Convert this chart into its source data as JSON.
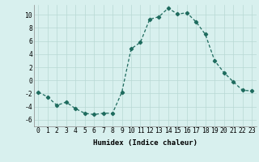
{
  "x": [
    0,
    1,
    2,
    3,
    4,
    5,
    6,
    7,
    8,
    9,
    10,
    11,
    12,
    13,
    14,
    15,
    16,
    17,
    18,
    19,
    20,
    21,
    22,
    23
  ],
  "y": [
    -1.8,
    -2.5,
    -3.8,
    -3.3,
    -4.3,
    -5.0,
    -5.2,
    -5.0,
    -5.0,
    -1.8,
    4.8,
    5.8,
    9.3,
    9.7,
    11.0,
    10.1,
    10.3,
    8.9,
    7.0,
    3.0,
    1.2,
    -0.2,
    -1.5,
    -1.6
  ],
  "line_color": "#1e6b5e",
  "marker": "D",
  "marker_size": 2.2,
  "linewidth": 0.9,
  "bg_color": "#d8f0ee",
  "grid_color": "#b8d8d4",
  "xlabel": "Humidex (Indice chaleur)",
  "xlabel_fontsize": 6.5,
  "tick_fontsize": 5.8,
  "xlim": [
    -0.5,
    23.5
  ],
  "ylim": [
    -7,
    11.5
  ],
  "yticks": [
    -6,
    -4,
    -2,
    0,
    2,
    4,
    6,
    8,
    10
  ],
  "xticks": [
    0,
    1,
    2,
    3,
    4,
    5,
    6,
    7,
    8,
    9,
    10,
    11,
    12,
    13,
    14,
    15,
    16,
    17,
    18,
    19,
    20,
    21,
    22,
    23
  ]
}
